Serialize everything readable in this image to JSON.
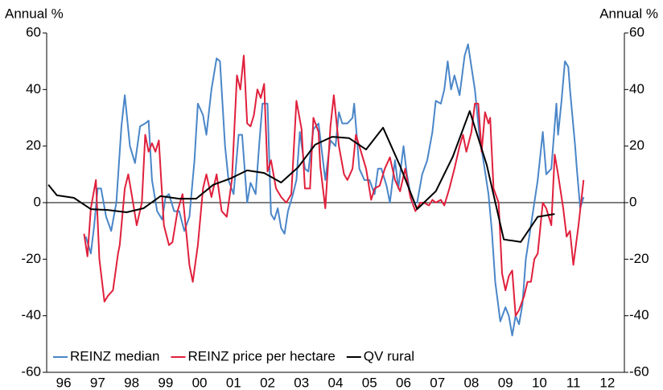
{
  "chart_data": {
    "type": "line",
    "ylabel": "Annual %",
    "y2label": "Annual %",
    "xlim": [
      1996,
      2013
    ],
    "xticks": [
      {
        "value": 1996.5,
        "label": "96"
      },
      {
        "value": 1997.5,
        "label": "97"
      },
      {
        "value": 1998.5,
        "label": "98"
      },
      {
        "value": 1999.5,
        "label": "99"
      },
      {
        "value": 2000.5,
        "label": "00"
      },
      {
        "value": 2001.5,
        "label": "01"
      },
      {
        "value": 2002.5,
        "label": "02"
      },
      {
        "value": 2003.5,
        "label": "03"
      },
      {
        "value": 2004.5,
        "label": "04"
      },
      {
        "value": 2005.5,
        "label": "05"
      },
      {
        "value": 2006.5,
        "label": "06"
      },
      {
        "value": 2007.5,
        "label": "07"
      },
      {
        "value": 2008.5,
        "label": "08"
      },
      {
        "value": 2009.5,
        "label": "09"
      },
      {
        "value": 2010.5,
        "label": "10"
      },
      {
        "value": 2011.5,
        "label": "11"
      },
      {
        "value": 2012.5,
        "label": "12"
      }
    ],
    "ylim": [
      -60,
      60
    ],
    "yticks": [
      -60,
      -40,
      -20,
      0,
      20,
      40,
      60
    ],
    "y2lim": [
      -60,
      60
    ],
    "y2ticks": [
      -60,
      -40,
      -20,
      0,
      20,
      40,
      60
    ],
    "legend": "lower left",
    "series": [
      {
        "name": "REINZ median",
        "color": "#4a86c8",
        "x": [
          1997.15,
          1997.3,
          1997.4,
          1997.5,
          1997.6,
          1997.75,
          1997.9,
          1998.05,
          1998.2,
          1998.3,
          1998.45,
          1998.6,
          1998.75,
          1998.9,
          1999.0,
          1999.1,
          1999.25,
          1999.4,
          1999.5,
          1999.6,
          1999.75,
          1999.9,
          2000.05,
          2000.2,
          2000.35,
          2000.45,
          2000.6,
          2000.7,
          2000.85,
          2001.0,
          2001.1,
          2001.25,
          2001.35,
          2001.5,
          2001.65,
          2001.75,
          2001.9,
          2002.0,
          2002.15,
          2002.25,
          2002.35,
          2002.5,
          2002.6,
          2002.7,
          2002.8,
          2002.9,
          2003.0,
          2003.1,
          2003.25,
          2003.35,
          2003.45,
          2003.6,
          2003.7,
          2003.85,
          2004.0,
          2004.1,
          2004.2,
          2004.35,
          2004.5,
          2004.6,
          2004.7,
          2004.85,
          2005.0,
          2005.05,
          2005.2,
          2005.35,
          2005.5,
          2005.65,
          2005.75,
          2005.85,
          2006.0,
          2006.1,
          2006.25,
          2006.35,
          2006.5,
          2006.6,
          2006.75,
          2006.9,
          2007.05,
          2007.2,
          2007.35,
          2007.45,
          2007.6,
          2007.7,
          2007.8,
          2007.9,
          2008.0,
          2008.15,
          2008.3,
          2008.4,
          2008.5,
          2008.6,
          2008.75,
          2008.85,
          2009.0,
          2009.1,
          2009.2,
          2009.35,
          2009.5,
          2009.6,
          2009.7,
          2009.8,
          2009.9,
          2010.0,
          2010.1,
          2010.25,
          2010.35,
          2010.45,
          2010.6,
          2010.7,
          2010.85,
          2011.0,
          2011.05,
          2011.15,
          2011.25,
          2011.35,
          2011.4,
          2011.55,
          2011.6,
          2011.7,
          2011.8
        ],
        "values": [
          -12,
          -18,
          -8,
          5,
          5,
          -5,
          -10,
          0,
          27,
          38,
          20,
          14,
          27,
          28,
          29,
          8,
          -3,
          -6,
          2,
          3,
          -3,
          -3,
          -10,
          -5,
          15,
          35,
          31,
          24,
          40,
          51,
          50,
          20,
          8,
          3,
          24,
          24,
          0,
          7,
          3,
          20,
          35,
          35,
          -4,
          -6,
          -2,
          -9,
          -11,
          -3,
          3,
          8,
          25,
          12,
          11,
          26,
          28,
          18,
          8,
          22,
          20,
          32,
          28,
          28,
          30,
          35,
          12,
          8,
          8,
          3,
          12,
          12,
          6,
          0,
          15,
          5,
          20,
          10,
          0,
          0,
          10,
          15,
          25,
          36,
          35,
          40,
          50,
          40,
          45,
          38,
          52,
          56,
          48,
          40,
          22,
          15,
          3,
          -10,
          -28,
          -42,
          -37,
          -40,
          -47,
          -40,
          -43,
          -36,
          -20,
          -8,
          0,
          8,
          25,
          10,
          12,
          35,
          24,
          36,
          50,
          48,
          40,
          20,
          12,
          -2,
          2
        ]
      },
      {
        "name": "REINZ price per hectare",
        "color": "#e0203c",
        "x": [
          1997.1,
          1997.2,
          1997.3,
          1997.45,
          1997.55,
          1997.7,
          1997.8,
          1997.95,
          1998.1,
          1998.15,
          1998.3,
          1998.4,
          1998.5,
          1998.65,
          1998.8,
          1998.9,
          1999.0,
          1999.1,
          1999.2,
          1999.3,
          1999.45,
          1999.6,
          1999.7,
          1999.85,
          2000.0,
          2000.2,
          2000.3,
          2000.45,
          2000.6,
          2000.7,
          2000.85,
          2001.0,
          2001.15,
          2001.3,
          2001.45,
          2001.6,
          2001.7,
          2001.8,
          2001.9,
          2002.0,
          2002.1,
          2002.2,
          2002.3,
          2002.4,
          2002.5,
          2002.6,
          2002.75,
          2002.9,
          2003.05,
          2003.2,
          2003.35,
          2003.5,
          2003.6,
          2003.75,
          2003.85,
          2004.0,
          2004.05,
          2004.2,
          2004.35,
          2004.45,
          2004.6,
          2004.75,
          2004.85,
          2005.0,
          2005.1,
          2005.25,
          2005.4,
          2005.55,
          2005.65,
          2005.8,
          2005.95,
          2006.1,
          2006.25,
          2006.4,
          2006.55,
          2006.7,
          2006.85,
          2007.0,
          2007.1,
          2007.25,
          2007.35,
          2007.45,
          2007.6,
          2007.7,
          2007.85,
          2008.0,
          2008.15,
          2008.25,
          2008.35,
          2008.5,
          2008.6,
          2008.7,
          2008.8,
          2008.9,
          2009.0,
          2009.05,
          2009.15,
          2009.3,
          2009.4,
          2009.5,
          2009.6,
          2009.7,
          2009.8,
          2009.9,
          2010.05,
          2010.15,
          2010.25,
          2010.35,
          2010.45,
          2010.6,
          2010.7,
          2010.85,
          2010.95,
          2011.05,
          2011.2,
          2011.3,
          2011.4,
          2011.5,
          2011.65,
          2011.8
        ],
        "values": [
          -11,
          -19,
          -2,
          8,
          -20,
          -35,
          -33,
          -31,
          -18,
          -15,
          5,
          10,
          3,
          -8,
          0,
          24,
          18,
          21,
          18,
          22,
          -8,
          -15,
          -14,
          -3,
          3,
          -22,
          -28,
          -15,
          5,
          10,
          2,
          10,
          -3,
          -5,
          8,
          45,
          40,
          52,
          28,
          27,
          31,
          40,
          37,
          42,
          11,
          15,
          5,
          2,
          0,
          3,
          36,
          26,
          5,
          5,
          30,
          25,
          13,
          -2,
          27,
          38,
          20,
          10,
          8,
          12,
          24,
          18,
          12,
          1,
          5,
          6,
          12,
          16,
          8,
          4,
          12,
          2,
          -3,
          0,
          0,
          -1,
          1,
          0,
          1,
          -1,
          5,
          12,
          20,
          24,
          18,
          25,
          35,
          35,
          18,
          32,
          28,
          30,
          5,
          0,
          -25,
          -31,
          -26,
          -24,
          -40,
          -38,
          -33,
          -28,
          -28,
          -20,
          -18,
          0,
          -2,
          -8,
          17,
          10,
          -2,
          -12,
          -10,
          -22,
          -8,
          8
        ]
      },
      {
        "name": "QV rural",
        "color": "#000000",
        "x": [
          1996.05,
          1996.3,
          1996.8,
          1997.3,
          1997.8,
          1998.35,
          1998.85,
          1999.35,
          1999.9,
          2000.4,
          2000.9,
          2001.4,
          2001.9,
          2002.4,
          2002.9,
          2003.4,
          2003.9,
          2004.4,
          2004.9,
          2005.4,
          2005.9,
          2006.4,
          2006.9,
          2007.45,
          2007.95,
          2008.45,
          2008.95,
          2009.45,
          2009.95,
          2010.45,
          2010.95
        ],
        "values": [
          6.3,
          2.6,
          1.7,
          -2.3,
          -2.6,
          -3.4,
          -2,
          2.3,
          1.4,
          1.4,
          6.3,
          8.5,
          11.4,
          10.5,
          7.1,
          12.5,
          20.5,
          23.3,
          22.8,
          18.8,
          26.5,
          13,
          -2.3,
          4,
          16.2,
          32.4,
          13.4,
          -13,
          -13.9,
          -5,
          -4
        ]
      }
    ]
  }
}
